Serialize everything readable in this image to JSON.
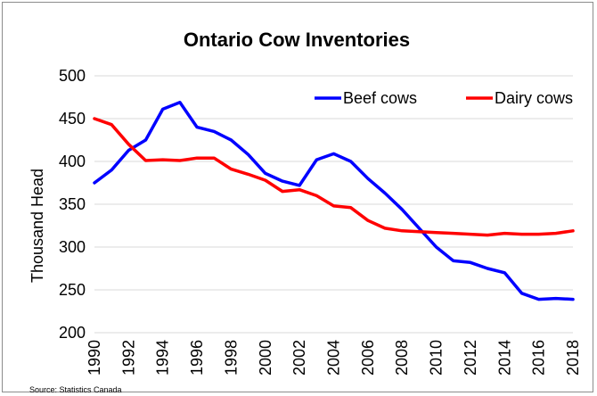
{
  "chart_data": {
    "type": "line",
    "title": "Ontario Cow Inventories",
    "xlabel": "",
    "ylabel": "Thousand Head",
    "ylim": [
      200,
      500
    ],
    "yticks": [
      200,
      250,
      300,
      350,
      400,
      450,
      500
    ],
    "x": [
      1990,
      1991,
      1992,
      1993,
      1994,
      1995,
      1996,
      1997,
      1998,
      1999,
      2000,
      2001,
      2002,
      2003,
      2004,
      2005,
      2006,
      2007,
      2008,
      2009,
      2010,
      2011,
      2012,
      2013,
      2014,
      2015,
      2016,
      2017,
      2018
    ],
    "xtick_labels": [
      "1990",
      "1992",
      "1994",
      "1996",
      "1998",
      "2000",
      "2002",
      "2004",
      "2006",
      "2008",
      "2010",
      "2012",
      "2014",
      "2016",
      "2018"
    ],
    "grid": "horizontal",
    "legend_position": "top-right",
    "series": [
      {
        "name": "Beef cows",
        "color": "#0000ff",
        "values": [
          375,
          390,
          413,
          425,
          461,
          469,
          440,
          435,
          425,
          408,
          386,
          377,
          372,
          402,
          409,
          400,
          380,
          363,
          344,
          322,
          300,
          284,
          282,
          275,
          270,
          246,
          239,
          240,
          239
        ]
      },
      {
        "name": "Dairy cows",
        "color": "#ff0000",
        "values": [
          450,
          443,
          420,
          401,
          402,
          401,
          404,
          404,
          391,
          385,
          378,
          365,
          367,
          360,
          348,
          346,
          331,
          322,
          319,
          318,
          317,
          316,
          315,
          314,
          316,
          315,
          315,
          316,
          319
        ]
      }
    ],
    "source_note": "Source: Statistics Canada"
  }
}
